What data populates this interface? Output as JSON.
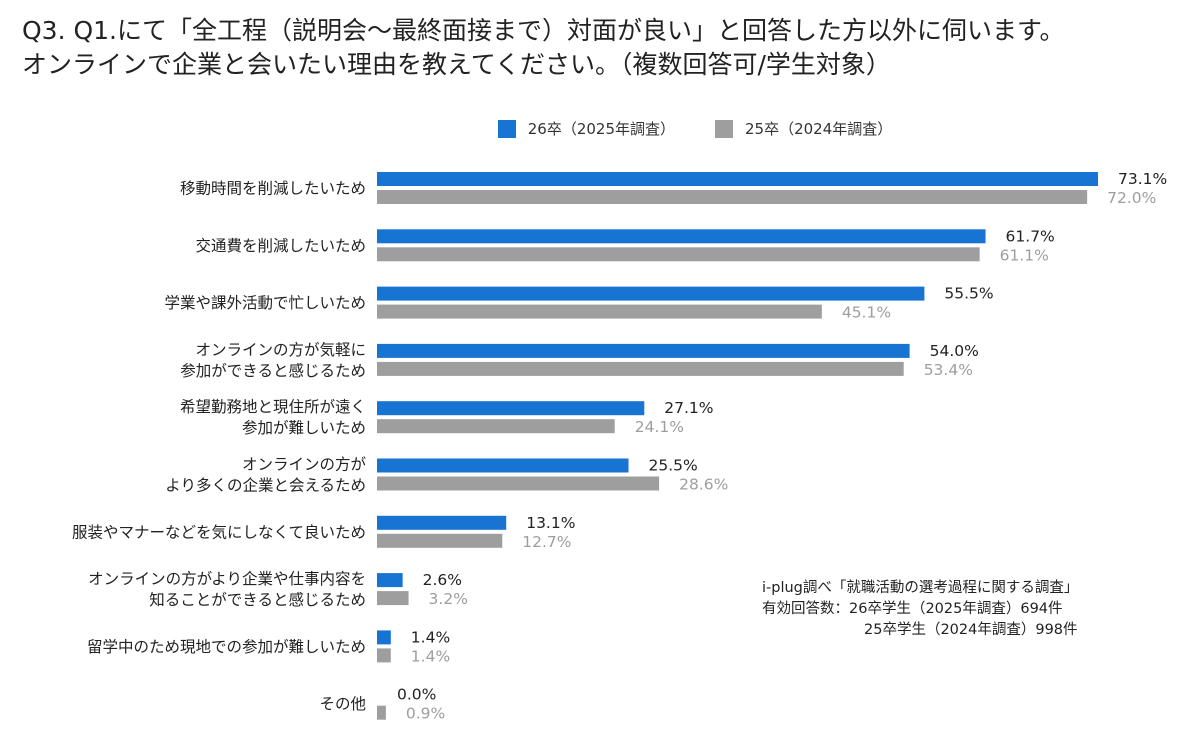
{
  "title": {
    "line1": "Q3. Q1.にて「全工程（説明会～最終面接まで）対面が良い」と回答した方以外に伺います。",
    "line2": "オンラインで企業と会いたい理由を教えてください。（複数回答可/学生対象）"
  },
  "source": {
    "line1": "i-plug調べ「就職活動の選考過程に関する調査」",
    "line2": "有効回答数：26卒学生（2025年調査）694件",
    "line3": "25卒学生（2024年調査）998件"
  },
  "colors": {
    "series1": "#1874d2",
    "series2": "#9e9e9e",
    "label2": "#9e9e9e"
  },
  "chart_data": {
    "type": "bar",
    "orientation": "horizontal",
    "xlim": [
      0,
      75
    ],
    "unit": "%",
    "categories": [
      [
        "移動時間を削減したいため"
      ],
      [
        "交通費を削減したいため"
      ],
      [
        "学業や課外活動で忙しいため"
      ],
      [
        "オンラインの方が気軽に",
        "参加ができると感じるため"
      ],
      [
        "希望勤務地と現住所が遠く",
        "参加が難しいため"
      ],
      [
        "オンラインの方が",
        "より多くの企業と会えるため"
      ],
      [
        "服装やマナーなどを気にしなくて良いため"
      ],
      [
        "オンラインの方がより企業や仕事内容を",
        "知ることができると感じるため"
      ],
      [
        "留学中のため現地での参加が難しいため"
      ],
      [
        "その他"
      ]
    ],
    "series": [
      {
        "name": "26卒（2025年調査）",
        "values": [
          73.1,
          61.7,
          55.5,
          54.0,
          27.1,
          25.5,
          13.1,
          2.6,
          1.4,
          0.0
        ],
        "labels": [
          "73.1%",
          "61.7%",
          "55.5%",
          "54.0%",
          "27.1%",
          "25.5%",
          "13.1%",
          "2.6%",
          "1.4%",
          "0.0%"
        ]
      },
      {
        "name": "25卒（2024年調査）",
        "values": [
          72.0,
          61.1,
          45.1,
          53.4,
          24.1,
          28.6,
          12.7,
          3.2,
          1.4,
          0.9
        ],
        "labels": [
          "72.0%",
          "61.1%",
          "45.1%",
          "53.4%",
          "24.1%",
          "28.6%",
          "12.7%",
          "3.2%",
          "1.4%",
          "0.9%"
        ]
      }
    ]
  }
}
